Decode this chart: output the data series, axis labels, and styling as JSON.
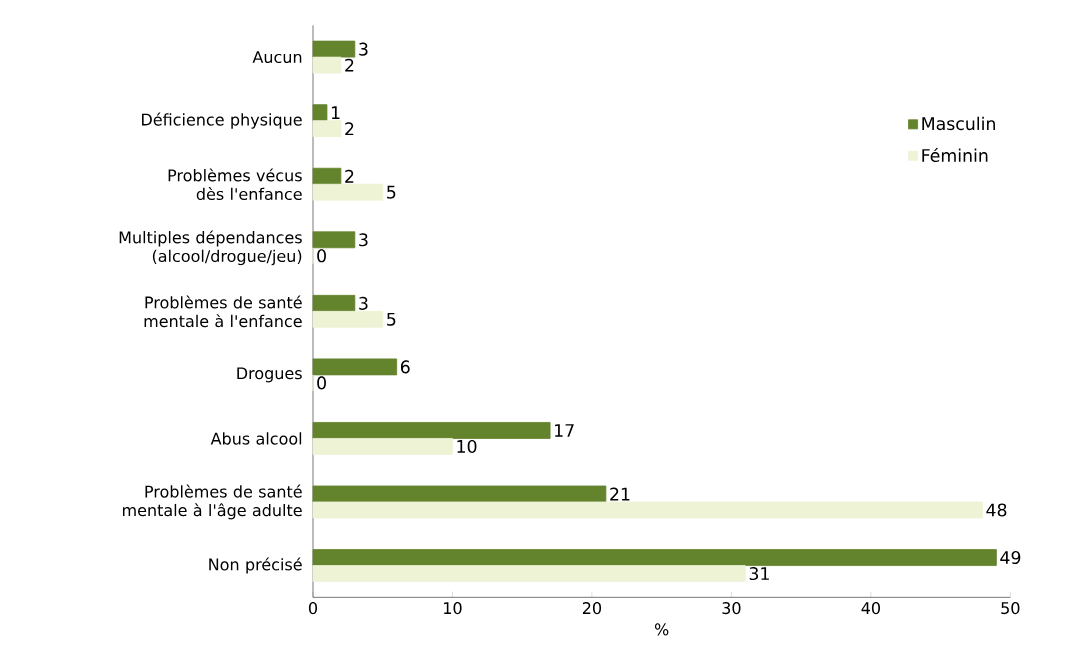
{
  "chart_data": {
    "type": "bar",
    "orientation": "horizontal",
    "xlabel": "%",
    "categories": [
      "Aucun",
      "Déficience physique",
      "Problèmes vécus dès l'enfance",
      "Multiples dépendances (alcool/drogue/jeu)",
      "Problèmes de santé mentale à l'enfance",
      "Drogues",
      "Abus alcool",
      "Problèmes de santé mentale à l'âge adulte",
      "Non précisé"
    ],
    "series": [
      {
        "name": "Masculin",
        "color": "#63832c",
        "values": [
          3,
          1,
          2,
          3,
          3,
          6,
          17,
          21,
          49
        ]
      },
      {
        "name": "Féminin",
        "color": "#eef3d5",
        "values": [
          2,
          2,
          5,
          0,
          5,
          0,
          10,
          48,
          31
        ]
      }
    ],
    "xlim": [
      0,
      50
    ],
    "xticks": [
      0,
      10,
      20,
      30,
      40,
      50
    ],
    "data_labels": true,
    "legend": "right",
    "grid": false
  }
}
